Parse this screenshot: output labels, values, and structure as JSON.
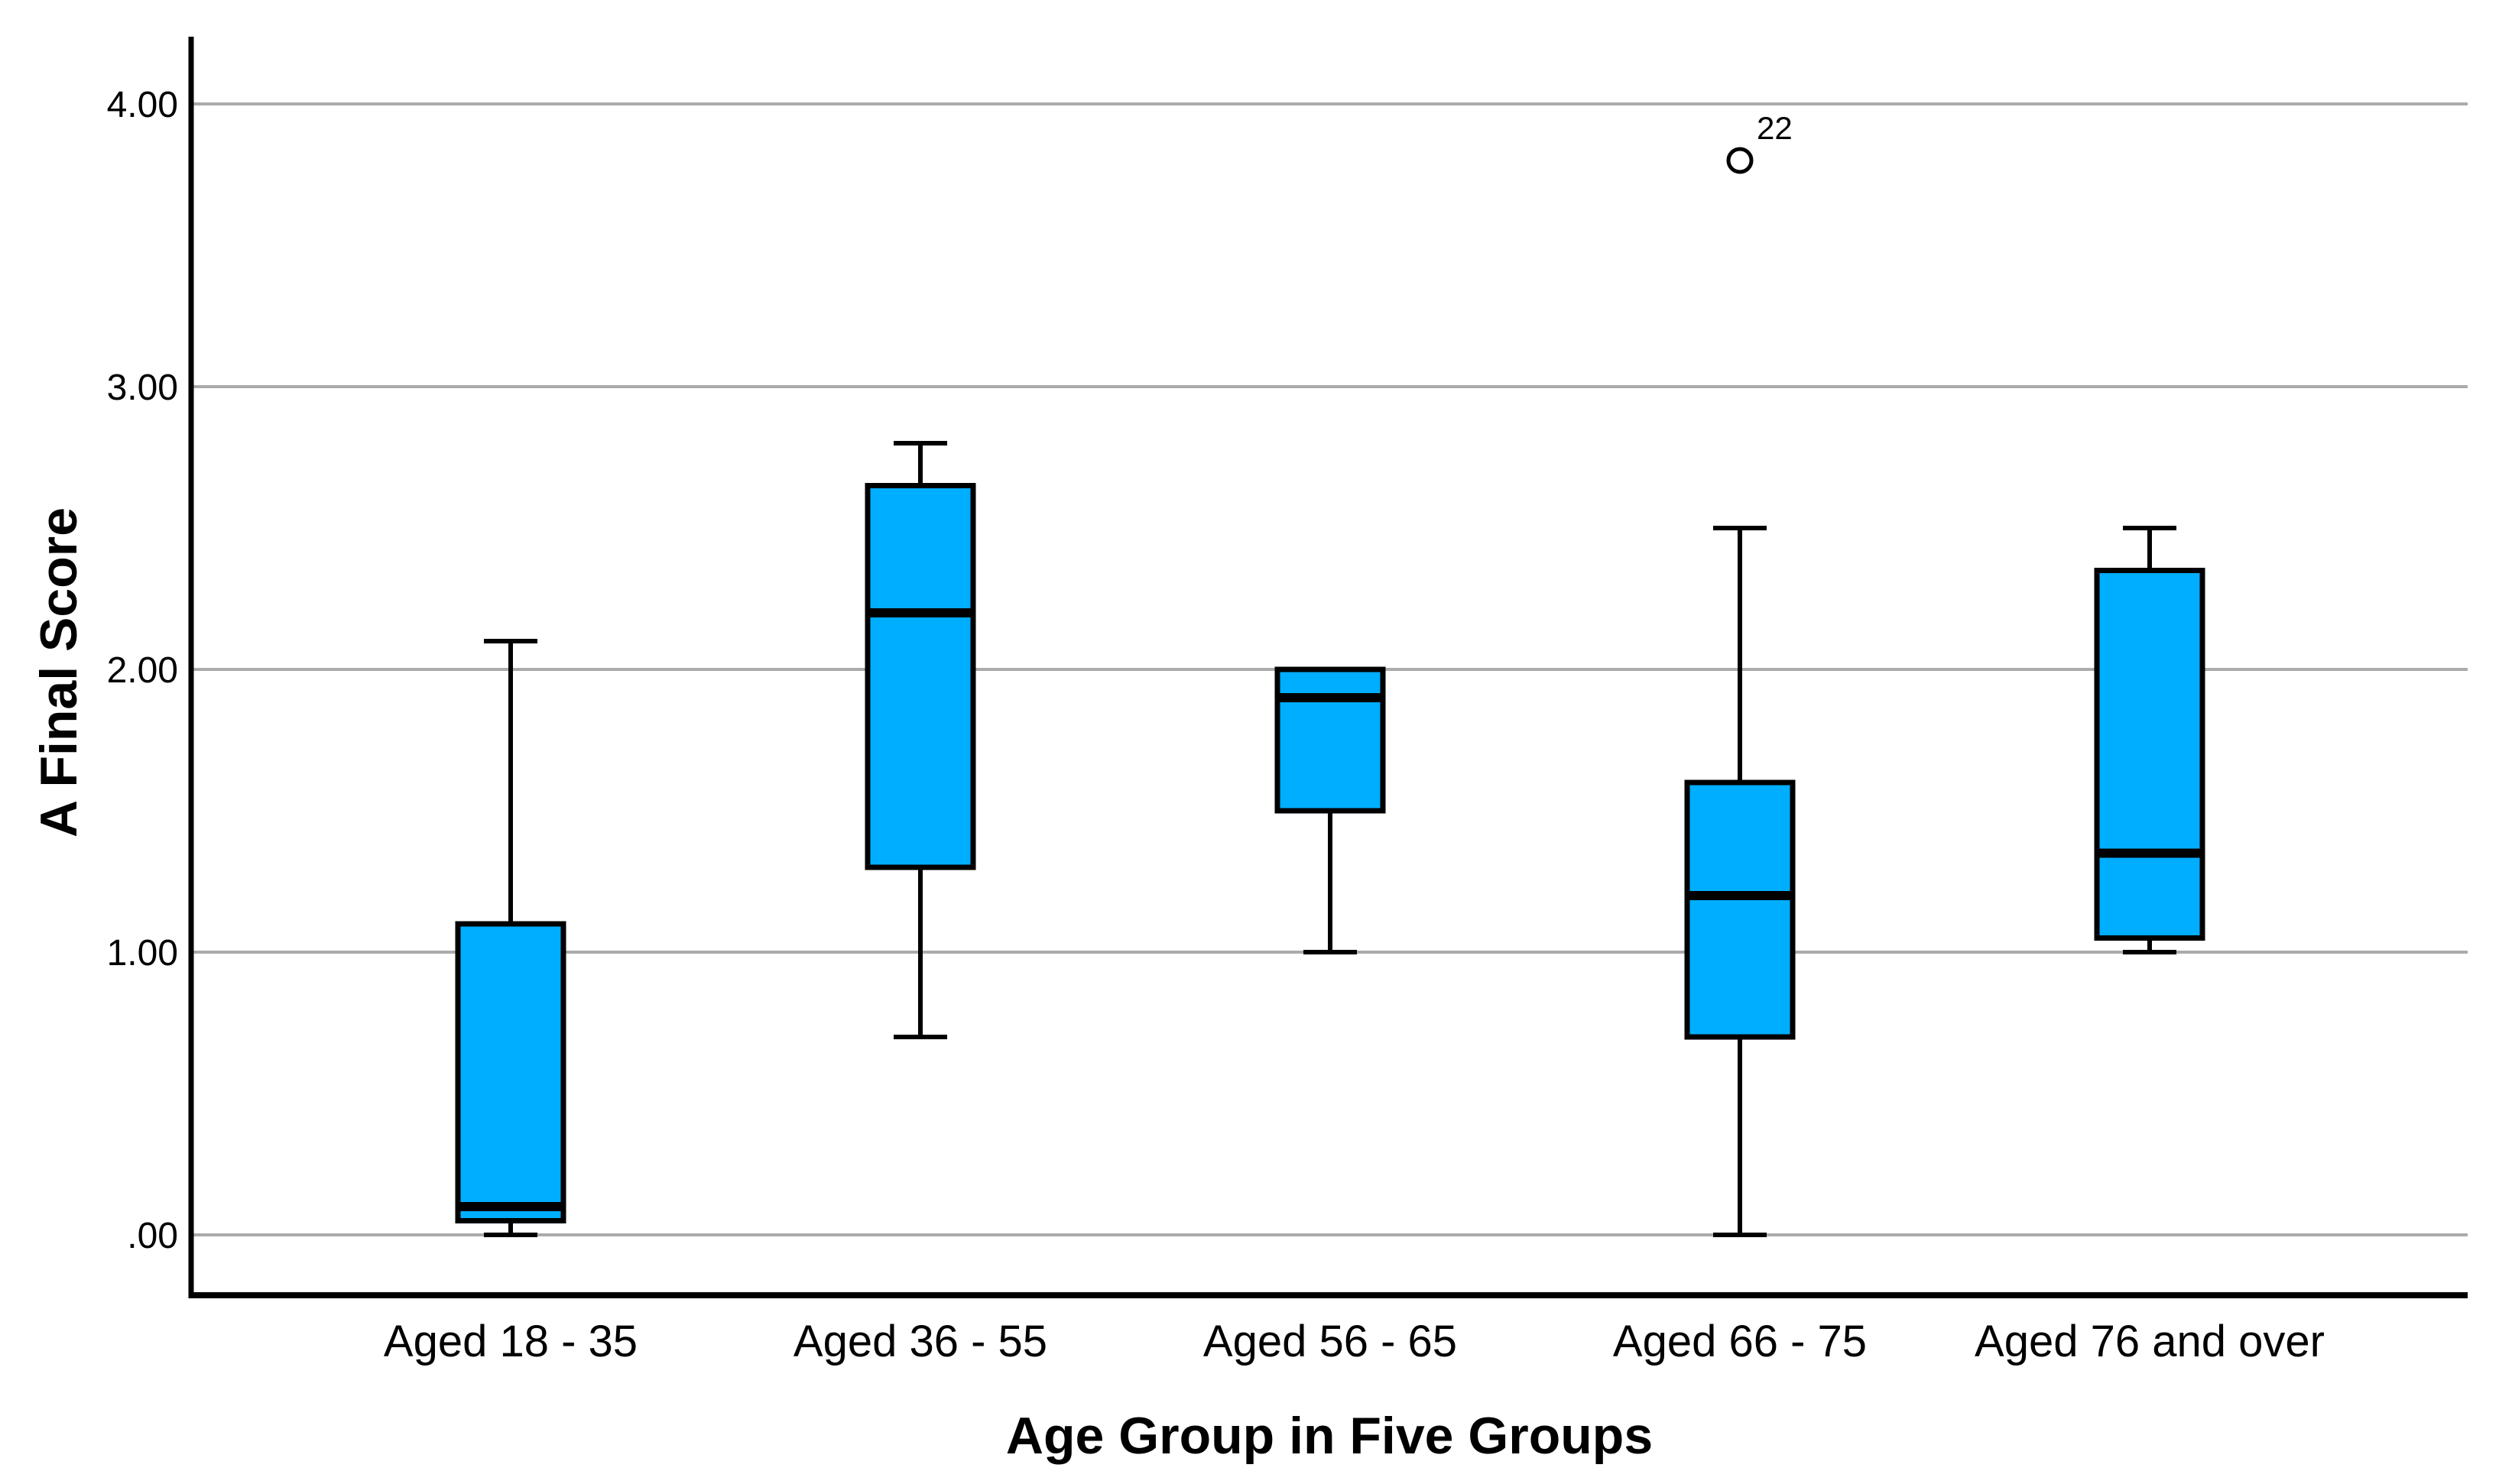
{
  "chart_data": {
    "type": "boxplot",
    "title": "",
    "xlabel": "Age Group in Five Groups",
    "ylabel": "A Final Score",
    "categories": [
      "Aged 18 - 35",
      "Aged 36 - 55",
      "Aged 56 - 65",
      "Aged 66 - 75",
      "Aged 76 and over"
    ],
    "boxes": [
      {
        "category": "Aged 18 - 35",
        "whisker_low": 0.0,
        "q1": 0.05,
        "median": 0.1,
        "q3": 1.1,
        "whisker_high": 2.1,
        "outliers": []
      },
      {
        "category": "Aged 36 - 55",
        "whisker_low": 0.7,
        "q1": 1.3,
        "median": 2.2,
        "q3": 2.65,
        "whisker_high": 2.8,
        "outliers": []
      },
      {
        "category": "Aged 56 - 65",
        "whisker_low": 1.0,
        "q1": 1.5,
        "median": 1.9,
        "q3": 2.0,
        "whisker_high": 2.0,
        "outliers": []
      },
      {
        "category": "Aged 66 - 75",
        "whisker_low": 0.0,
        "q1": 0.7,
        "median": 1.2,
        "q3": 1.6,
        "whisker_high": 2.5,
        "outliers": [
          {
            "value": 3.8,
            "label": "22"
          }
        ]
      },
      {
        "category": "Aged 76 and over",
        "whisker_low": 1.0,
        "q1": 1.05,
        "median": 1.35,
        "q3": 2.35,
        "whisker_high": 2.5,
        "outliers": []
      }
    ],
    "y_ticks": [
      {
        "value": 0,
        "label": ".00"
      },
      {
        "value": 1,
        "label": "1.00"
      },
      {
        "value": 2,
        "label": "2.00"
      },
      {
        "value": 3,
        "label": "3.00"
      },
      {
        "value": 4,
        "label": "4.00"
      }
    ],
    "ylim": [
      -0.2,
      4.25
    ],
    "grid": "horizontal",
    "legend": "none",
    "colors": {
      "box_fill": "#00AEFF",
      "box_border": "#000000",
      "median": "#000000",
      "whisker": "#000000",
      "gridline": "#ABABAB",
      "axis": "#000000",
      "text": "#000000",
      "background": "#FFFFFF"
    }
  }
}
